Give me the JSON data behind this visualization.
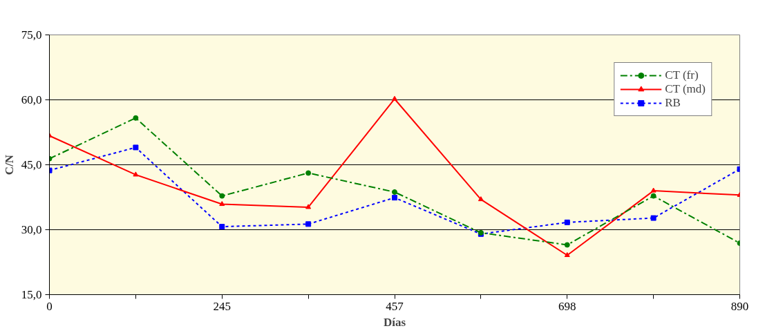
{
  "chart_data": {
    "type": "line",
    "xlabel": "Días",
    "ylabel": "C/N",
    "categories": [
      "0",
      null,
      "245",
      null,
      "457",
      null,
      "698",
      null,
      "890"
    ],
    "series": [
      {
        "name": "CT (fr)",
        "color": "#008000",
        "marker": "circle",
        "line_style": "dashed",
        "values": [
          46.4,
          55.8,
          37.8,
          43.1,
          38.7,
          29.3,
          26.5,
          37.8,
          26.9
        ]
      },
      {
        "name": "CT (md)",
        "color": "#ff0000",
        "marker": "triangle",
        "line_style": "solid",
        "values": [
          51.7,
          42.7,
          35.9,
          35.2,
          60.2,
          37.0,
          24.1,
          39.0,
          38.0
        ]
      },
      {
        "name": "RB",
        "color": "#0000ff",
        "marker": "square",
        "line_style": "dotted",
        "values": [
          43.7,
          49.0,
          30.7,
          31.3,
          37.4,
          29.0,
          31.7,
          32.7,
          44.0
        ]
      }
    ],
    "ylim": [
      15,
      75
    ],
    "yticks": [
      {
        "value": 15,
        "label": "15,0"
      },
      {
        "value": 30,
        "label": "30,0"
      },
      {
        "value": 45,
        "label": "45,0"
      },
      {
        "value": 60,
        "label": "60,0"
      },
      {
        "value": 75,
        "label": "75,0"
      }
    ],
    "grid": "y",
    "legend": "top right"
  }
}
